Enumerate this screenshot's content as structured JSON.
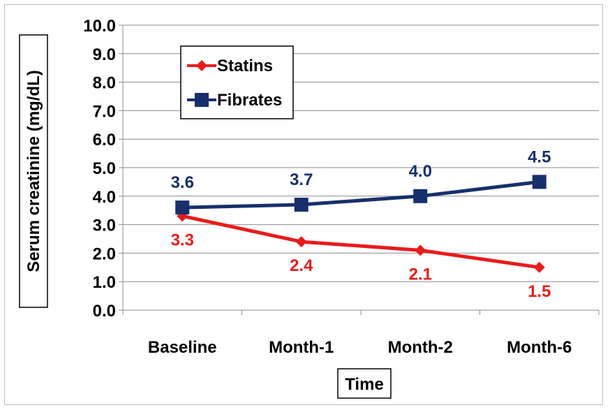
{
  "chart_data": {
    "type": "line",
    "categories": [
      "Baseline",
      "Month-1",
      "Month-2",
      "Month-6"
    ],
    "series": [
      {
        "name": "Statins",
        "values": [
          3.3,
          2.4,
          2.1,
          1.5
        ],
        "color": "#e81c1c",
        "marker": "diamond"
      },
      {
        "name": "Fibrates",
        "values": [
          3.6,
          3.7,
          4.0,
          4.5
        ],
        "color": "#17306b",
        "marker": "square"
      }
    ],
    "xlabel": "Time",
    "ylabel": "Serum creatinine (mg/dL)",
    "ylim": [
      0,
      10
    ],
    "yticks": [
      "0.0",
      "1.0",
      "2.0",
      "3.0",
      "4.0",
      "5.0",
      "6.0",
      "7.0",
      "8.0",
      "9.0",
      "10.0"
    ],
    "grid": true,
    "legend": "top-left"
  }
}
